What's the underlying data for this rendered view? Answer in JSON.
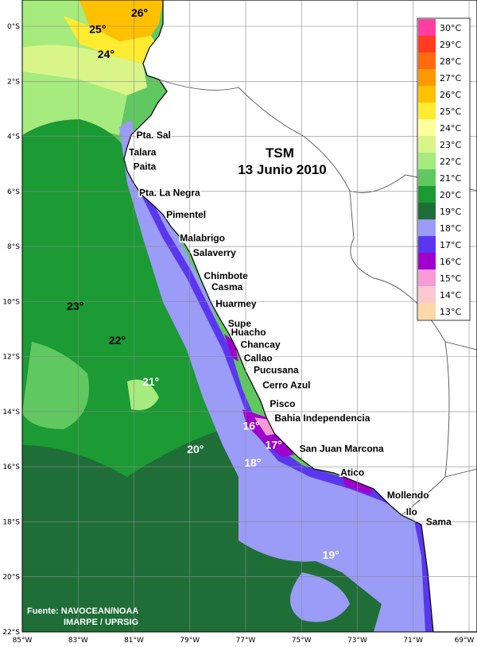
{
  "title": {
    "line1": "TSM",
    "line2": "13 Junio 2010"
  },
  "source": {
    "line1": "Fuente: NAVOCEAN/NOAA",
    "line2": "IMARPE / UPRSIG"
  },
  "colors": {
    "land": "#ffffff",
    "coast": "#000000",
    "border": "#555555",
    "grid": "#8a8a8a"
  },
  "legend": [
    {
      "label": "30°C",
      "color": "#ff3fa0"
    },
    {
      "label": "29°C",
      "color": "#ff3c20"
    },
    {
      "label": "28°C",
      "color": "#ff6a10"
    },
    {
      "label": "27°C",
      "color": "#ff9800"
    },
    {
      "label": "26°C",
      "color": "#ffc000"
    },
    {
      "label": "25°C",
      "color": "#ffec30"
    },
    {
      "label": "24°C",
      "color": "#ffff9e"
    },
    {
      "label": "23°C",
      "color": "#d9f58a"
    },
    {
      "label": "22°C",
      "color": "#a6eb7e"
    },
    {
      "label": "21°C",
      "color": "#60c860"
    },
    {
      "label": "20°C",
      "color": "#1c9a34"
    },
    {
      "label": "19°C",
      "color": "#1f6e37"
    },
    {
      "label": "18°C",
      "color": "#9a9cf7"
    },
    {
      "label": "17°C",
      "color": "#5a37ee"
    },
    {
      "label": "16°C",
      "color": "#a000cc"
    },
    {
      "label": "15°C",
      "color": "#f79ad6"
    },
    {
      "label": "14°C",
      "color": "#fcc8cf"
    },
    {
      "label": "13°C",
      "color": "#ffd7a8"
    }
  ],
  "axes": {
    "lon_ticks": [
      "85°W",
      "83°W",
      "81°W",
      "79°W",
      "77°W",
      "75°W",
      "73°W",
      "71°W",
      "69°W"
    ],
    "lat_ticks": [
      "0°S",
      "2°S",
      "4°S",
      "6°S",
      "8°S",
      "10°S",
      "12°S",
      "14°S",
      "16°S",
      "18°S",
      "20°S",
      "22°S"
    ]
  },
  "places": [
    {
      "name": "Pta. Sal",
      "lon": -81.0,
      "lat": -3.95
    },
    {
      "name": "Talara",
      "lon": -81.27,
      "lat": -4.58
    },
    {
      "name": "Paita",
      "lon": -81.11,
      "lat": -5.09
    },
    {
      "name": "Pta. La Negra",
      "lon": -80.9,
      "lat": -6.05
    },
    {
      "name": "Pimentel",
      "lon": -79.93,
      "lat": -6.84
    },
    {
      "name": "Malabrigo",
      "lon": -79.44,
      "lat": -7.7
    },
    {
      "name": "Salaverry",
      "lon": -78.97,
      "lat": -8.23
    },
    {
      "name": "Chimbote",
      "lon": -78.58,
      "lat": -9.07
    },
    {
      "name": "Casma",
      "lon": -78.31,
      "lat": -9.47
    },
    {
      "name": "Huarmey",
      "lon": -78.16,
      "lat": -10.07
    },
    {
      "name": "Supe",
      "lon": -77.72,
      "lat": -10.8
    },
    {
      "name": "Huacho",
      "lon": -77.61,
      "lat": -11.11
    },
    {
      "name": "Chancay",
      "lon": -77.27,
      "lat": -11.57
    },
    {
      "name": "Callao",
      "lon": -77.15,
      "lat": -12.06
    },
    {
      "name": "Pucusana",
      "lon": -76.8,
      "lat": -12.48
    },
    {
      "name": "Cerro Azul",
      "lon": -76.48,
      "lat": -13.03
    },
    {
      "name": "Pisco",
      "lon": -76.22,
      "lat": -13.71
    },
    {
      "name": "Bahia Independencia",
      "lon": -76.05,
      "lat": -14.23
    },
    {
      "name": "San Juan Marcona",
      "lon": -75.16,
      "lat": -15.35
    },
    {
      "name": "Atico",
      "lon": -73.69,
      "lat": -16.21
    },
    {
      "name": "Mollendo",
      "lon": -72.02,
      "lat": -17.03
    },
    {
      "name": "Ilo",
      "lon": -71.34,
      "lat": -17.64
    },
    {
      "name": "Sama",
      "lon": -70.63,
      "lat": -18.0
    }
  ],
  "isotherm_labels": [
    {
      "text": "26°",
      "lon": -80.8,
      "lat": 0.35,
      "tone": "dark"
    },
    {
      "text": "25°",
      "lon": -82.3,
      "lat": -0.25,
      "tone": "dark"
    },
    {
      "text": "24°",
      "lon": -82.0,
      "lat": -1.15,
      "tone": "dark"
    },
    {
      "text": "23°",
      "lon": -83.1,
      "lat": -10.3,
      "tone": "dark"
    },
    {
      "text": "22°",
      "lon": -81.6,
      "lat": -11.55,
      "tone": "dark"
    },
    {
      "text": "21°",
      "lon": -80.4,
      "lat": -13.05,
      "tone": "light"
    },
    {
      "text": "20°",
      "lon": -78.8,
      "lat": -15.5,
      "tone": "light"
    },
    {
      "text": "19°",
      "lon": -73.95,
      "lat": -19.35,
      "tone": "light"
    },
    {
      "text": "18°",
      "lon": -76.75,
      "lat": -16.0,
      "tone": "light"
    },
    {
      "text": "17°",
      "lon": -76.0,
      "lat": -15.35,
      "tone": "light"
    },
    {
      "text": "16°",
      "lon": -76.8,
      "lat": -14.65,
      "tone": "light"
    }
  ]
}
